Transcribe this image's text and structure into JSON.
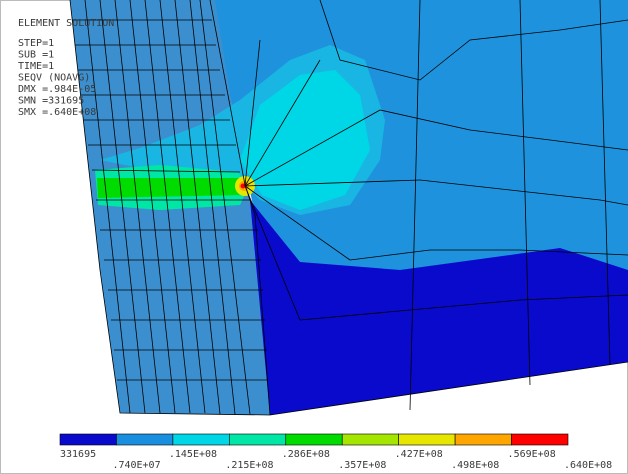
{
  "header": {
    "lines": [
      "ELEMENT SOLUTION",
      "STEP=1",
      "SUB =1",
      "TIME=1",
      "SEQV     (NOAVG)",
      "DMX =.984E-05",
      "SMN =331695",
      "SMX =.640E+08"
    ]
  },
  "legend": {
    "colors": [
      "#0a0acd",
      "#1a8fe0",
      "#00d7e6",
      "#00e6a5",
      "#00dc00",
      "#a5e600",
      "#e6e600",
      "#ffa500",
      "#ff0000"
    ],
    "labels": [
      "331695",
      ".740E+07",
      ".145E+08",
      ".215E+08",
      ".286E+08",
      ".357E+08",
      ".427E+08",
      ".498E+08",
      ".569E+08",
      ".640E+08"
    ]
  }
}
